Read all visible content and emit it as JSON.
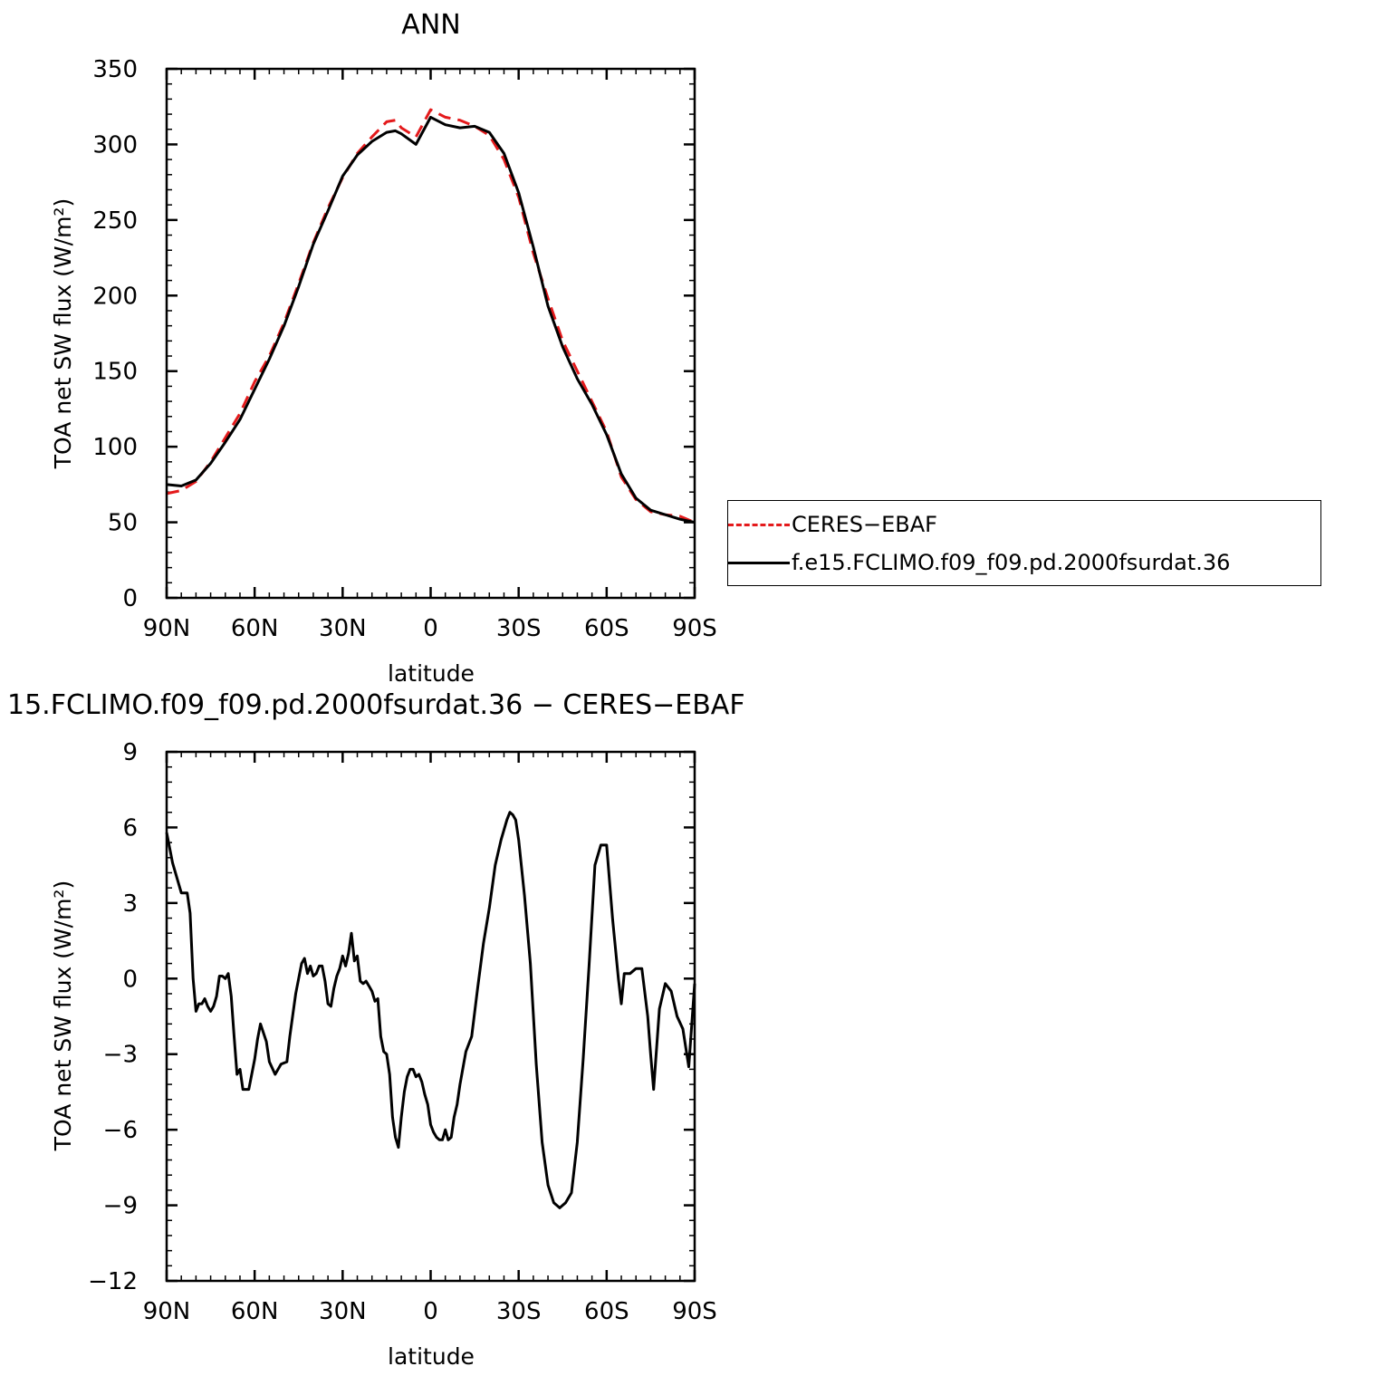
{
  "chart_data": [
    {
      "type": "line",
      "title": "ANN",
      "xlabel": "latitude",
      "ylabel": "TOA net SW flux (W/m²)",
      "x_ticks": [
        "90N",
        "60N",
        "30N",
        "0",
        "30S",
        "60S",
        "90S"
      ],
      "xlim": [
        90,
        -90
      ],
      "ylim": [
        0,
        350
      ],
      "y_ticks": [
        "0",
        "50",
        "100",
        "150",
        "200",
        "250",
        "300",
        "350"
      ],
      "grid": false,
      "legend_placement": "right",
      "x": [
        90,
        85,
        80,
        75,
        70,
        65,
        60,
        55,
        50,
        45,
        40,
        35,
        30,
        25,
        20,
        15,
        12,
        10,
        5,
        0,
        -5,
        -10,
        -15,
        -20,
        -25,
        -30,
        -35,
        -40,
        -45,
        -50,
        -55,
        -60,
        -65,
        -70,
        -75,
        -80,
        -85,
        -90
      ],
      "series": [
        {
          "name": "CERES-EBAF",
          "color": "#e41a1c",
          "dash": "dashed",
          "values": [
            69,
            71,
            77,
            90,
            106,
            122,
            143,
            160,
            182,
            208,
            235,
            258,
            278,
            294,
            305,
            315,
            316,
            311,
            305,
            323,
            318,
            316,
            312,
            306,
            290,
            265,
            228,
            198,
            170,
            150,
            130,
            110,
            80,
            65,
            57,
            55,
            54,
            50
          ]
        },
        {
          "name": "f.e15.FCLIMO.f09_f09.pd.2000fsurdat.36",
          "color": "#000000",
          "dash": "solid",
          "values": [
            75,
            74,
            78,
            89,
            103,
            118,
            138,
            158,
            180,
            206,
            234,
            256,
            279,
            293,
            302,
            308,
            309,
            307,
            300,
            318,
            313,
            311,
            312,
            308,
            294,
            268,
            232,
            193,
            166,
            145,
            128,
            108,
            82,
            66,
            58,
            55,
            52,
            50
          ]
        }
      ]
    },
    {
      "type": "line",
      "title": "15.FCLIMO.f09_f09.pd.2000fsurdat.36 − CERES−EBAF",
      "xlabel": "latitude",
      "ylabel": "TOA net SW flux (W/m²)",
      "x_ticks": [
        "90N",
        "60N",
        "30N",
        "0",
        "30S",
        "60S",
        "90S"
      ],
      "xlim": [
        90,
        -90
      ],
      "ylim": [
        -12,
        9
      ],
      "y_ticks": [
        "−12",
        "−9",
        "−6",
        "−3",
        "0",
        "3",
        "6",
        "9"
      ],
      "grid": false,
      "x": [
        90,
        88,
        85,
        83,
        82,
        81,
        80,
        79,
        78,
        77,
        76,
        75,
        74,
        73,
        72,
        71,
        70,
        69,
        68,
        67,
        66,
        65,
        64,
        62,
        60,
        59,
        58,
        56,
        55,
        53,
        51,
        49,
        48,
        46,
        44,
        43,
        42,
        41,
        40,
        39,
        38,
        37,
        36,
        35,
        34,
        33,
        32,
        31,
        30,
        29,
        28,
        27,
        26,
        25,
        24,
        23,
        22,
        21,
        20,
        19,
        18,
        17,
        16,
        15,
        14,
        13,
        12,
        11,
        10,
        9,
        8,
        7,
        6,
        5,
        4,
        3,
        2,
        1,
        0,
        -1,
        -2,
        -3,
        -4,
        -5,
        -6,
        -7,
        -8,
        -9,
        -10,
        -12,
        -14,
        -16,
        -18,
        -20,
        -22,
        -24,
        -26,
        -27,
        -28,
        -29,
        -30,
        -32,
        -34,
        -36,
        -38,
        -40,
        -42,
        -44,
        -46,
        -48,
        -50,
        -52,
        -54,
        -56,
        -58,
        -60,
        -62,
        -64,
        -65,
        -66,
        -68,
        -70,
        -72,
        -74,
        -75,
        -76,
        -78,
        -80,
        -82,
        -84,
        -86,
        -88,
        -90
      ],
      "values": [
        5.8,
        4.6,
        3.4,
        3.4,
        2.6,
        0,
        -1.3,
        -1.0,
        -1.0,
        -0.8,
        -1.1,
        -1.3,
        -1.1,
        -0.7,
        0.1,
        0.1,
        0.0,
        0.2,
        -0.7,
        -2.3,
        -3.8,
        -3.6,
        -4.4,
        -4.4,
        -3.2,
        -2.4,
        -1.8,
        -2.5,
        -3.3,
        -3.8,
        -3.4,
        -3.3,
        -2.3,
        -0.6,
        0.6,
        0.8,
        0.2,
        0.5,
        0.1,
        0.2,
        0.5,
        0.5,
        -0.1,
        -1.0,
        -1.1,
        -0.4,
        0.1,
        0.4,
        0.9,
        0.5,
        1.0,
        1.8,
        0.7,
        0.9,
        -0.1,
        -0.2,
        -0.1,
        -0.3,
        -0.5,
        -0.9,
        -0.8,
        -2.3,
        -2.9,
        -3.0,
        -3.8,
        -5.5,
        -6.3,
        -6.7,
        -5.5,
        -4.5,
        -3.9,
        -3.6,
        -3.6,
        -3.9,
        -3.8,
        -4.1,
        -4.6,
        -5.0,
        -5.8,
        -6.1,
        -6.3,
        -6.4,
        -6.4,
        -6.0,
        -6.4,
        -6.3,
        -5.5,
        -5.0,
        -4.2,
        -2.9,
        -2.3,
        -0.4,
        1.4,
        2.8,
        4.5,
        5.5,
        6.3,
        6.6,
        6.5,
        6.3,
        5.5,
        3.3,
        0.6,
        -3.4,
        -6.5,
        -8.2,
        -8.9,
        -9.1,
        -8.9,
        -8.5,
        -6.5,
        -3.2,
        0.5,
        4.5,
        5.3,
        5.3,
        2.4,
        0.0,
        -1.0,
        0.2,
        0.2,
        0.4,
        0.4,
        -1.5,
        -3.0,
        -4.4,
        -1.2,
        -0.2,
        -0.5,
        -1.5,
        -2.0,
        -3.5,
        -0.2
      ]
    }
  ],
  "legend": [
    {
      "label": "CERES−EBAF"
    },
    {
      "label": "f.e15.FCLIMO.f09_f09.pd.2000fsurdat.36"
    }
  ]
}
